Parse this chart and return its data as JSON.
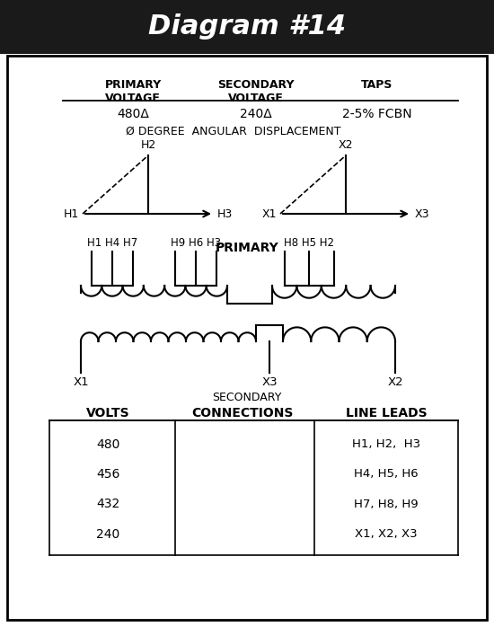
{
  "title": "Diagram #14",
  "title_bg": "#1a1a1a",
  "title_color": "#ffffff",
  "bg_color": "#ffffff",
  "primary_voltage": "480Δ",
  "secondary_voltage": "240Δ",
  "taps": "2-5% FCBN",
  "angular_displacement": "Ø DEGREE  ANGULAR  DISPLACEMENT",
  "primary_label": "PRIMARY",
  "secondary_label": "SECONDARY",
  "lead_groups_primary": [
    "H1 H4 H7",
    "H9 H6 H3",
    "H8 H5 H2"
  ],
  "lead_labels_secondary": [
    "X1",
    "X3",
    "X2"
  ],
  "table_volts": [
    "480",
    "456",
    "432",
    "240"
  ],
  "table_line_leads": [
    "H1, H2,  H3",
    "H4, H5, H6",
    "H7, H8, H9",
    "X1, X2, X3"
  ]
}
